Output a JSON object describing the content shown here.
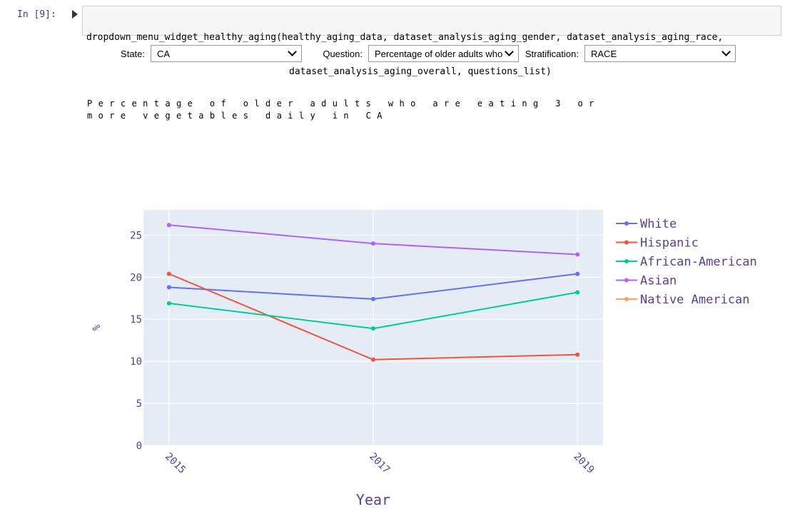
{
  "notebook": {
    "prompt": "In [9]:",
    "code": [
      "dropdown_menu_widget_healthy_aging(healthy_aging_data, dataset_analysis_aging_gender, dataset_analysis_aging_race,",
      "dataset_analysis_aging_overall, questions_list)"
    ]
  },
  "widgets": [
    {
      "label": "State:",
      "value": "CA"
    },
    {
      "label": "Question:",
      "value": "Percentage of older adults who"
    },
    {
      "label": "Stratification:",
      "value": "RACE"
    }
  ],
  "chart_data": {
    "type": "line",
    "title": "Percentage of older adults who are eating 3 or more vegetables daily in CA",
    "x_label": "Year",
    "y_label": "%",
    "x": [
      2015,
      2017,
      2019
    ],
    "xlim": [
      2014.75,
      2019.25
    ],
    "xticks": [
      2015,
      2017,
      2019
    ],
    "ylim": [
      0,
      28
    ],
    "yticks": [
      0,
      5,
      10,
      15,
      20,
      25
    ],
    "grid": true,
    "legend": "right",
    "series": [
      {
        "name": "White",
        "color": "#636efa",
        "values": [
          18.8,
          17.4,
          20.4
        ]
      },
      {
        "name": "Hispanic",
        "color": "#ef553b",
        "values": [
          20.4,
          10.2,
          10.8
        ]
      },
      {
        "name": "African-American",
        "color": "#00cc96",
        "values": [
          16.9,
          13.9,
          18.2
        ]
      },
      {
        "name": "Asian",
        "color": "#ab63fa",
        "values": [
          26.2,
          24.0,
          22.7
        ]
      },
      {
        "name": "Native American",
        "color": "#ffa15a",
        "values": [
          null,
          null,
          null
        ]
      }
    ]
  }
}
